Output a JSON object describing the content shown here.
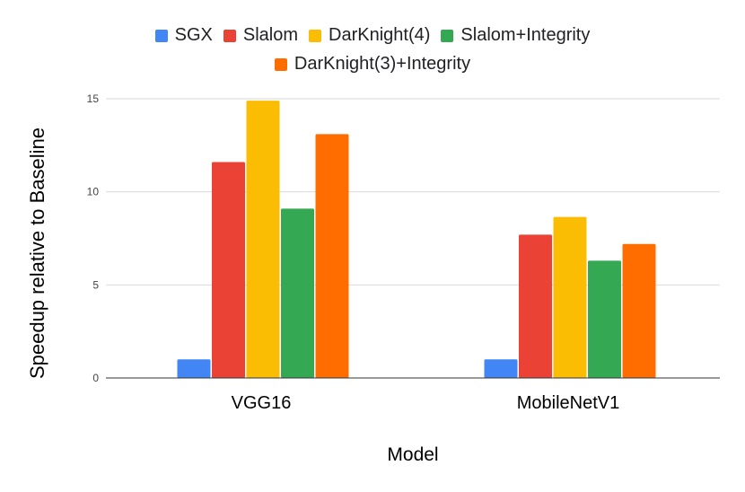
{
  "chart_data": {
    "type": "bar",
    "title": "",
    "xlabel": "Model",
    "ylabel": "Speedup relative to Baseline",
    "categories": [
      "VGG16",
      "MobileNetV1"
    ],
    "series": [
      {
        "name": "SGX",
        "color": "#4285f4",
        "values": [
          1.0,
          1.0
        ]
      },
      {
        "name": "Slalom",
        "color": "#ea4335",
        "values": [
          11.6,
          7.7
        ]
      },
      {
        "name": "DarKnight(4)",
        "color": "#fbbc04",
        "values": [
          14.9,
          8.65
        ]
      },
      {
        "name": "Slalom+Integrity",
        "color": "#34a853",
        "values": [
          9.1,
          6.3
        ]
      },
      {
        "name": "DarKnight(3)+Integrity",
        "color": "#ff6d01",
        "values": [
          13.1,
          7.2
        ]
      }
    ],
    "ylim": [
      0,
      15
    ],
    "yticks": [
      0,
      5,
      10,
      15
    ],
    "grid": true,
    "legend": "top"
  }
}
